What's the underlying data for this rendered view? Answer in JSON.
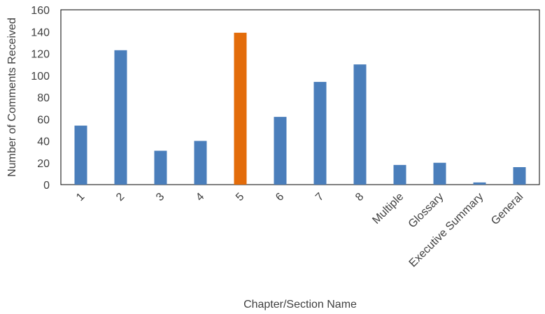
{
  "chart_data": {
    "type": "bar",
    "title": "",
    "xlabel": "Chapter/Section Name",
    "ylabel": "Number of Comments Received",
    "ylim": [
      0,
      160
    ],
    "yticks": [
      0,
      20,
      40,
      60,
      80,
      100,
      120,
      140,
      160
    ],
    "grid": false,
    "legend": "none",
    "categories": [
      "1",
      "2",
      "3",
      "4",
      "5",
      "6",
      "7",
      "8",
      "Multiple",
      "Glossary",
      "Executive Summary",
      "General"
    ],
    "values": [
      54,
      123,
      31,
      40,
      139,
      62,
      94,
      110,
      18,
      20,
      2,
      16
    ],
    "bar_colors": [
      "#4a7ebb",
      "#4a7ebb",
      "#4a7ebb",
      "#4a7ebb",
      "#e36c0a",
      "#4a7ebb",
      "#4a7ebb",
      "#4a7ebb",
      "#4a7ebb",
      "#4a7ebb",
      "#4a7ebb",
      "#4a7ebb"
    ],
    "colors": {
      "default": "#4a7ebb",
      "highlight": "#e36c0a",
      "axis": "#000000",
      "text": "#404040"
    }
  }
}
